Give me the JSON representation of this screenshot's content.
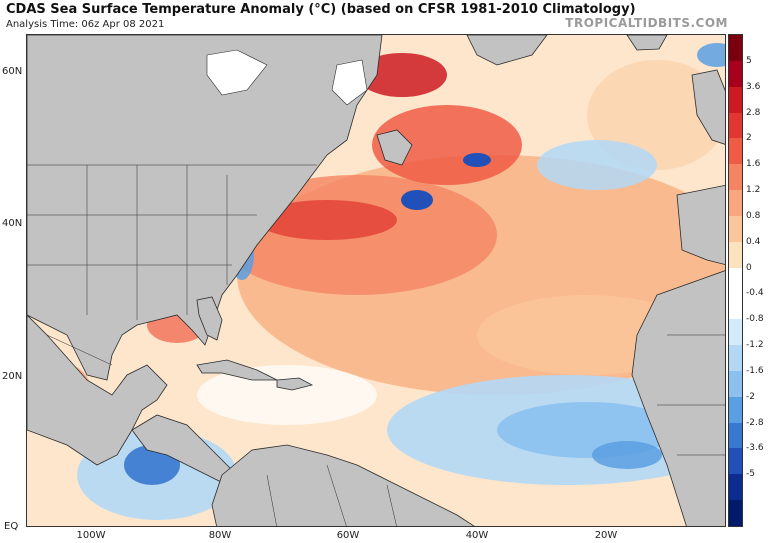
{
  "header": {
    "title": "CDAS Sea Surface Temperature Anomaly (°C) (based on CFSR 1981-2010 Climatology)",
    "analysis_time": "Analysis Time: 06z Apr 08 2021",
    "brand": "TROPICALTIDBITS.COM"
  },
  "map": {
    "lat_labels": [
      "60N",
      "40N",
      "20N",
      "EQ"
    ],
    "lon_labels": [
      "100W",
      "80W",
      "60W",
      "40W",
      "20W"
    ],
    "land_color": "#c2c2c2",
    "border_color": "#2a2a2a"
  },
  "colorbar": {
    "labels": [
      "5",
      "3.6",
      "2.8",
      "2",
      "1.6",
      "1.2",
      "0.8",
      "0.4",
      "0",
      "-0.4",
      "-0.8",
      "-1.2",
      "-1.6",
      "-2",
      "-2.8",
      "-3.6",
      "-5"
    ],
    "colors": [
      "#7a0010",
      "#a8001c",
      "#cc1a22",
      "#e03830",
      "#ee5c45",
      "#f58462",
      "#f9a77e",
      "#fbc79a",
      "#fde2c0",
      "#ffffff",
      "#ffffff",
      "#d4ebfb",
      "#b2d8f6",
      "#8cc1ef",
      "#5a9fe2",
      "#3878d0",
      "#2050b8",
      "#0c2c90",
      "#021a6a"
    ]
  }
}
